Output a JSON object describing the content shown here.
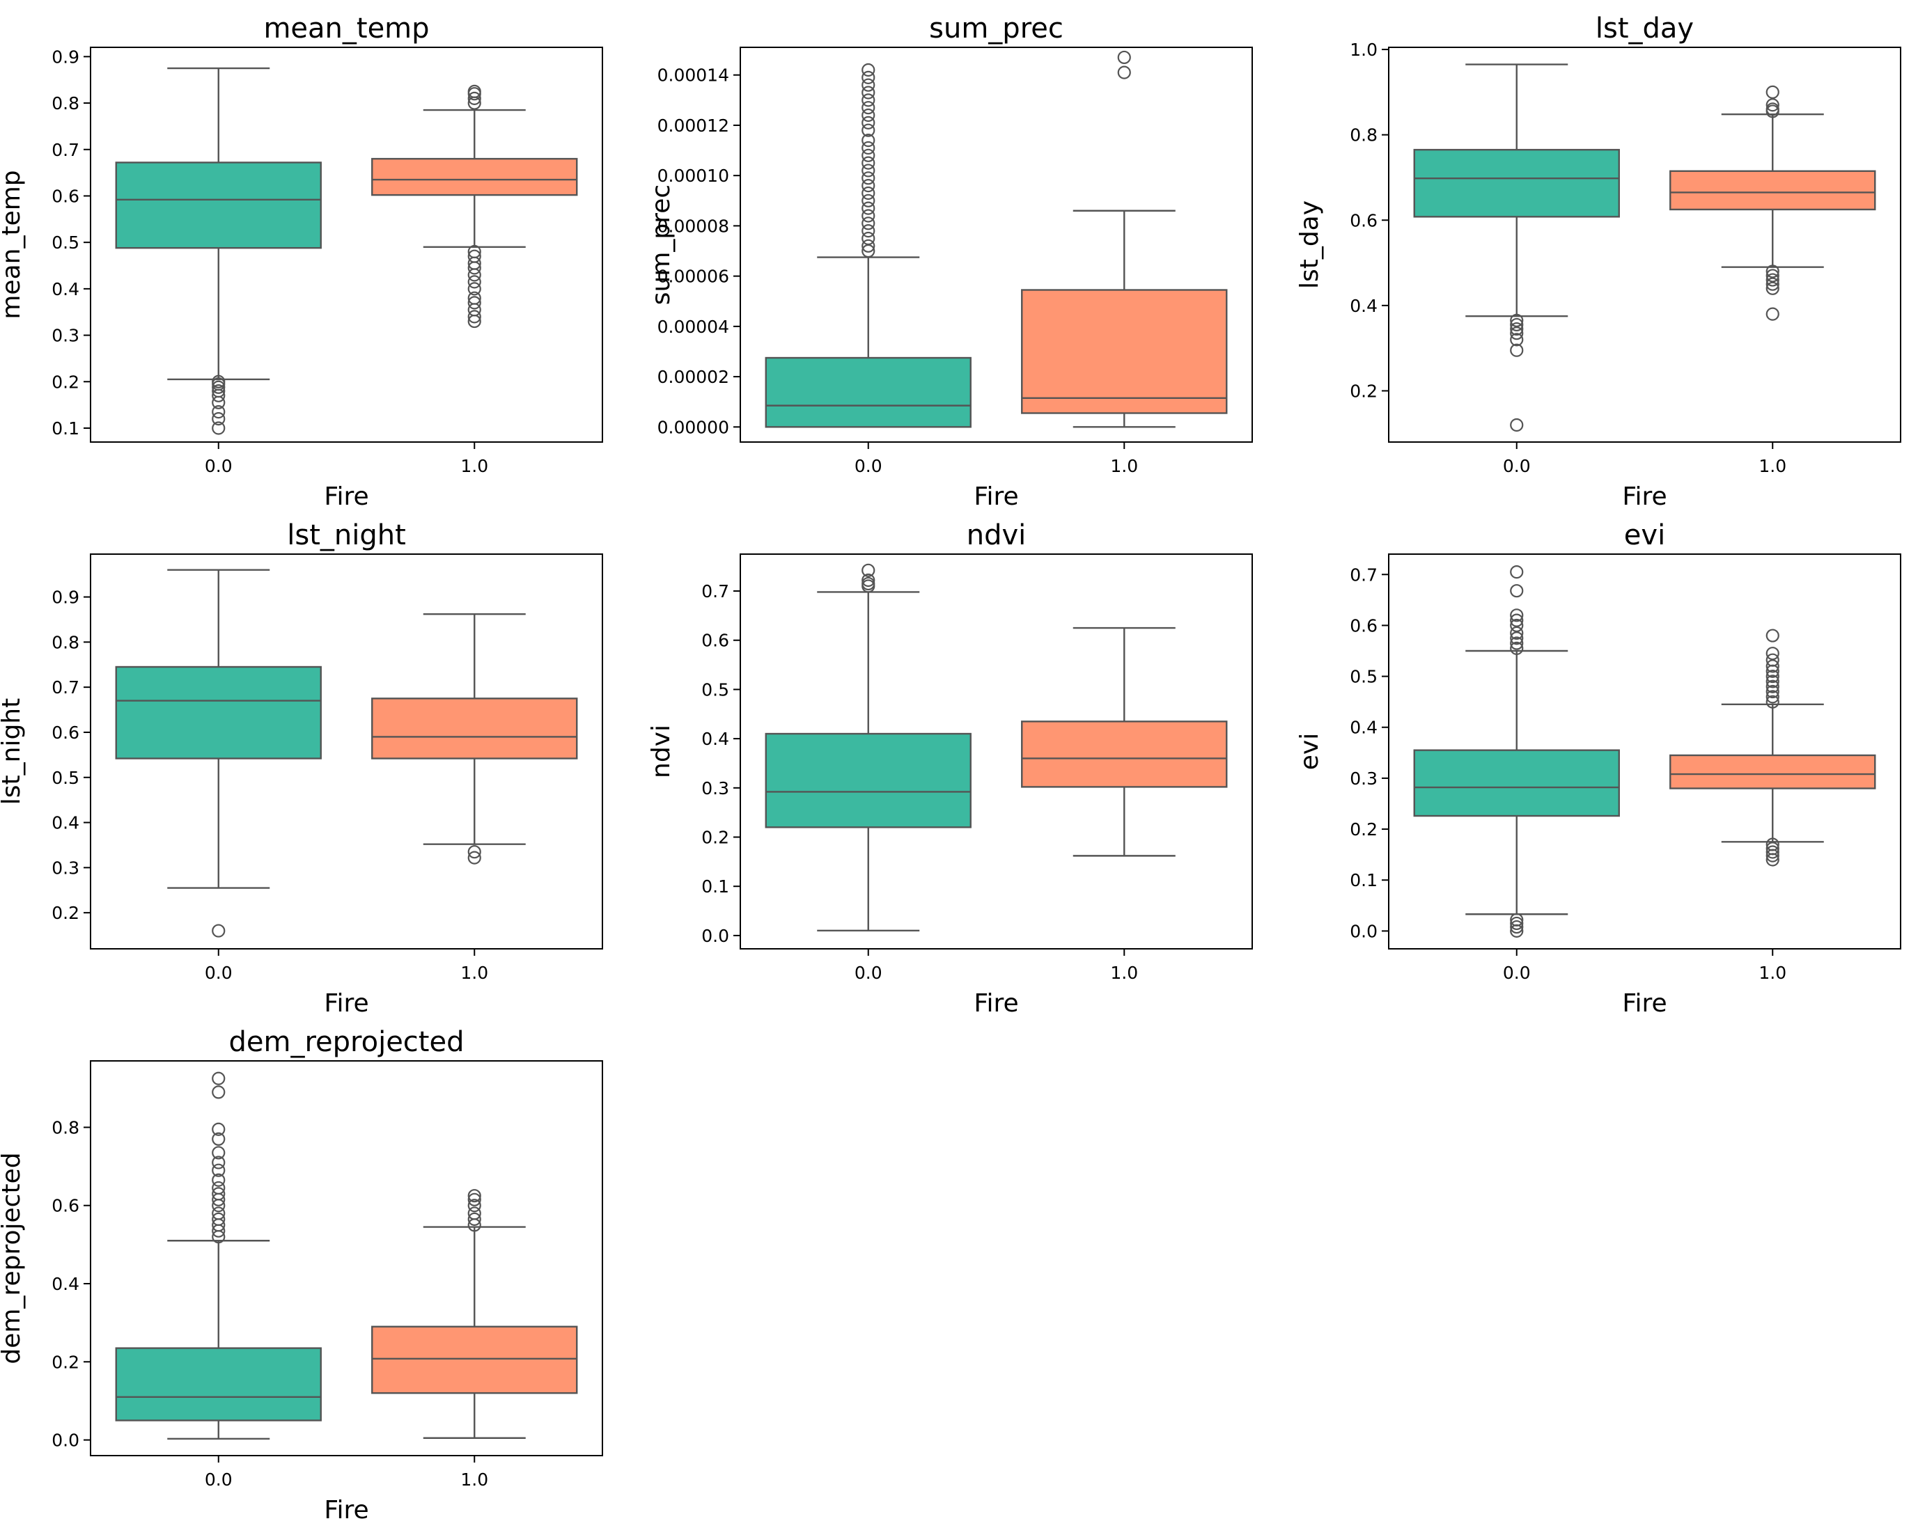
{
  "colors": {
    "fire_0": "#3CB9A0",
    "fire_1": "#FF9672",
    "line": "#545454"
  },
  "chart_data": [
    {
      "type": "box",
      "title": "mean_temp",
      "xlabel": "Fire",
      "ylabel": "mean_temp",
      "ylim": [
        0.07,
        0.92
      ],
      "yticks": [
        0.1,
        0.2,
        0.3,
        0.4,
        0.5,
        0.6,
        0.7,
        0.8,
        0.9
      ],
      "ytick_labels": [
        "0.1",
        "0.2",
        "0.3",
        "0.4",
        "0.5",
        "0.6",
        "0.7",
        "0.8",
        "0.9"
      ],
      "categories": [
        "0.0",
        "1.0"
      ],
      "boxes": [
        {
          "category": "0.0",
          "whislo": 0.205,
          "q1": 0.488,
          "med": 0.592,
          "q3": 0.672,
          "whishi": 0.875,
          "fliers": [
            0.1,
            0.12,
            0.135,
            0.155,
            0.17,
            0.18,
            0.188,
            0.195,
            0.2
          ]
        },
        {
          "category": "1.0",
          "whislo": 0.49,
          "q1": 0.602,
          "med": 0.635,
          "q3": 0.68,
          "whishi": 0.785,
          "fliers": [
            0.33,
            0.34,
            0.355,
            0.37,
            0.38,
            0.4,
            0.415,
            0.43,
            0.445,
            0.455,
            0.47,
            0.48,
            0.8,
            0.81,
            0.82,
            0.825
          ]
        }
      ]
    },
    {
      "type": "box",
      "title": "sum_prec",
      "xlabel": "Fire",
      "ylabel": "sum_prec",
      "ylim": [
        -6e-06,
        0.000151
      ],
      "yticks": [
        0,
        2e-05,
        4e-05,
        6e-05,
        8e-05,
        0.0001,
        0.00012,
        0.00014
      ],
      "ytick_labels": [
        "0.00000",
        "0.00002",
        "0.00004",
        "0.00006",
        "0.00008",
        "0.00010",
        "0.00012",
        "0.00014"
      ],
      "categories": [
        "0.0",
        "1.0"
      ],
      "boxes": [
        {
          "category": "0.0",
          "whislo": 0.0,
          "q1": 0.0,
          "med": 8.5e-06,
          "q3": 2.75e-05,
          "whishi": 6.75e-05,
          "fliers": [
            7e-05,
            7.2e-05,
            7.5e-05,
            7.8e-05,
            8.1e-05,
            8.4e-05,
            8.7e-05,
            9e-05,
            9.3e-05,
            9.6e-05,
            9.9e-05,
            0.000102,
            0.000105,
            0.000108,
            0.000111,
            0.000114,
            0.000118,
            0.000121,
            0.000124,
            0.000127,
            0.00013,
            0.000133,
            0.000136,
            0.000139,
            0.000142
          ]
        },
        {
          "category": "1.0",
          "whislo": 0.0,
          "q1": 5.5e-06,
          "med": 1.15e-05,
          "q3": 5.45e-05,
          "whishi": 8.6e-05,
          "fliers": [
            0.000141,
            0.000147
          ]
        }
      ]
    },
    {
      "type": "box",
      "title": "lst_day",
      "xlabel": "Fire",
      "ylabel": "lst_day",
      "ylim": [
        0.08,
        1.005
      ],
      "yticks": [
        0.2,
        0.4,
        0.6,
        0.8,
        1.0
      ],
      "ytick_labels": [
        "0.2",
        "0.4",
        "0.6",
        "0.8",
        "1.0"
      ],
      "categories": [
        "0.0",
        "1.0"
      ],
      "boxes": [
        {
          "category": "0.0",
          "whislo": 0.375,
          "q1": 0.608,
          "med": 0.698,
          "q3": 0.765,
          "whishi": 0.965,
          "fliers": [
            0.12,
            0.295,
            0.32,
            0.335,
            0.345,
            0.355,
            0.365
          ]
        },
        {
          "category": "1.0",
          "whislo": 0.49,
          "q1": 0.625,
          "med": 0.665,
          "q3": 0.715,
          "whishi": 0.848,
          "fliers": [
            0.38,
            0.44,
            0.45,
            0.46,
            0.47,
            0.48,
            0.855,
            0.86,
            0.87,
            0.9
          ]
        }
      ]
    },
    {
      "type": "box",
      "title": "lst_night",
      "xlabel": "Fire",
      "ylabel": "lst_night",
      "ylim": [
        0.12,
        0.995
      ],
      "yticks": [
        0.2,
        0.3,
        0.4,
        0.5,
        0.6,
        0.7,
        0.8,
        0.9
      ],
      "ytick_labels": [
        "0.2",
        "0.3",
        "0.4",
        "0.5",
        "0.6",
        "0.7",
        "0.8",
        "0.9"
      ],
      "categories": [
        "0.0",
        "1.0"
      ],
      "boxes": [
        {
          "category": "0.0",
          "whislo": 0.255,
          "q1": 0.542,
          "med": 0.67,
          "q3": 0.745,
          "whishi": 0.96,
          "fliers": [
            0.16
          ]
        },
        {
          "category": "1.0",
          "whislo": 0.352,
          "q1": 0.542,
          "med": 0.59,
          "q3": 0.675,
          "whishi": 0.862,
          "fliers": [
            0.322,
            0.335
          ]
        }
      ]
    },
    {
      "type": "box",
      "title": "ndvi",
      "xlabel": "Fire",
      "ylabel": "ndvi",
      "ylim": [
        -0.027,
        0.775
      ],
      "yticks": [
        0.0,
        0.1,
        0.2,
        0.3,
        0.4,
        0.5,
        0.6,
        0.7
      ],
      "ytick_labels": [
        "0.0",
        "0.1",
        "0.2",
        "0.3",
        "0.4",
        "0.5",
        "0.6",
        "0.7"
      ],
      "categories": [
        "0.0",
        "1.0"
      ],
      "boxes": [
        {
          "category": "0.0",
          "whislo": 0.01,
          "q1": 0.22,
          "med": 0.292,
          "q3": 0.41,
          "whishi": 0.698,
          "fliers": [
            0.71,
            0.715,
            0.722,
            0.742
          ]
        },
        {
          "category": "1.0",
          "whislo": 0.162,
          "q1": 0.302,
          "med": 0.36,
          "q3": 0.435,
          "whishi": 0.625,
          "fliers": []
        }
      ]
    },
    {
      "type": "box",
      "title": "evi",
      "xlabel": "Fire",
      "ylabel": "evi",
      "ylim": [
        -0.035,
        0.74
      ],
      "yticks": [
        0.0,
        0.1,
        0.2,
        0.3,
        0.4,
        0.5,
        0.6,
        0.7
      ],
      "ytick_labels": [
        "0.0",
        "0.1",
        "0.2",
        "0.3",
        "0.4",
        "0.5",
        "0.6",
        "0.7"
      ],
      "categories": [
        "0.0",
        "1.0"
      ],
      "boxes": [
        {
          "category": "0.0",
          "whislo": 0.033,
          "q1": 0.226,
          "med": 0.282,
          "q3": 0.355,
          "whishi": 0.55,
          "fliers": [
            0.0,
            0.008,
            0.015,
            0.022,
            0.555,
            0.565,
            0.575,
            0.585,
            0.6,
            0.61,
            0.62,
            0.668,
            0.705
          ]
        },
        {
          "category": "1.0",
          "whislo": 0.175,
          "q1": 0.28,
          "med": 0.308,
          "q3": 0.345,
          "whishi": 0.445,
          "fliers": [
            0.14,
            0.148,
            0.155,
            0.162,
            0.17,
            0.45,
            0.46,
            0.47,
            0.48,
            0.49,
            0.5,
            0.51,
            0.52,
            0.532,
            0.545,
            0.58
          ]
        }
      ]
    },
    {
      "type": "box",
      "title": "dem_reprojected",
      "xlabel": "Fire",
      "ylabel": "dem_reprojected",
      "ylim": [
        -0.04,
        0.97
      ],
      "yticks": [
        0.0,
        0.2,
        0.4,
        0.6,
        0.8
      ],
      "ytick_labels": [
        "0.0",
        "0.2",
        "0.4",
        "0.6",
        "0.8"
      ],
      "categories": [
        "0.0",
        "1.0"
      ],
      "boxes": [
        {
          "category": "0.0",
          "whislo": 0.003,
          "q1": 0.05,
          "med": 0.11,
          "q3": 0.235,
          "whishi": 0.51,
          "fliers": [
            0.52,
            0.535,
            0.55,
            0.565,
            0.58,
            0.6,
            0.615,
            0.63,
            0.645,
            0.665,
            0.69,
            0.71,
            0.735,
            0.77,
            0.795,
            0.89,
            0.925
          ]
        },
        {
          "category": "1.0",
          "whislo": 0.005,
          "q1": 0.12,
          "med": 0.208,
          "q3": 0.29,
          "whishi": 0.545,
          "fliers": [
            0.55,
            0.565,
            0.58,
            0.6,
            0.615,
            0.625
          ]
        }
      ]
    }
  ]
}
